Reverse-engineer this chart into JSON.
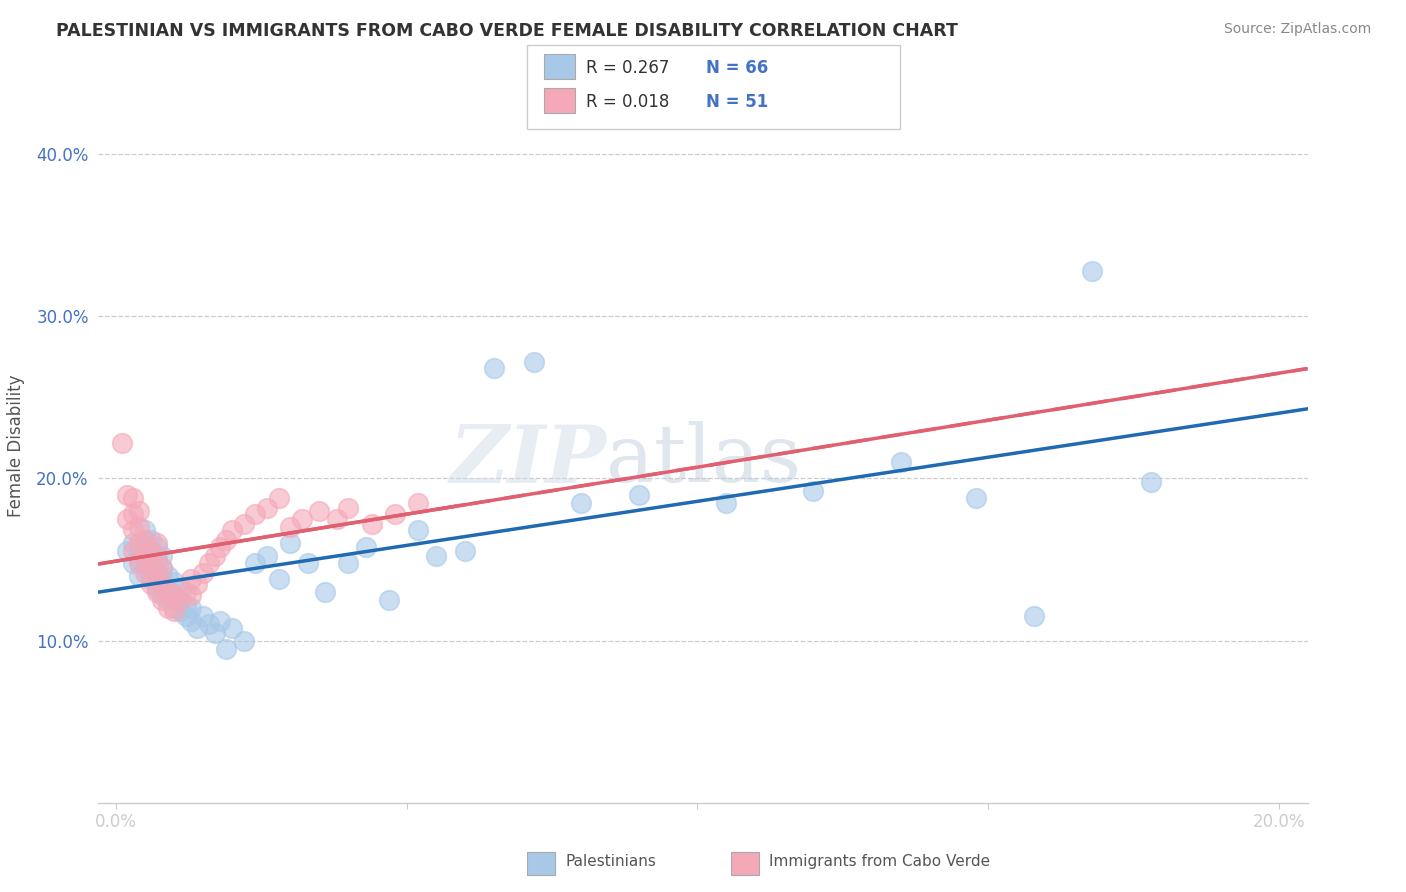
{
  "title": "PALESTINIAN VS IMMIGRANTS FROM CABO VERDE FEMALE DISABILITY CORRELATION CHART",
  "source": "Source: ZipAtlas.com",
  "ylabel": "Female Disability",
  "xlim": [
    -0.003,
    0.205
  ],
  "ylim": [
    0.0,
    0.44
  ],
  "yticks": [
    0.1,
    0.2,
    0.3,
    0.4
  ],
  "xticks": [
    0.0,
    0.05,
    0.1,
    0.15,
    0.2
  ],
  "xtick_labels": [
    "0.0%",
    "",
    "",
    "",
    "20.0%"
  ],
  "ytick_labels": [
    "10.0%",
    "20.0%",
    "30.0%",
    "40.0%"
  ],
  "watermark_zip": "ZIP",
  "watermark_atlas": "atlas",
  "legend_r1": "R = 0.267",
  "legend_n1": "N = 66",
  "legend_r2": "R = 0.018",
  "legend_n2": "N = 51",
  "color_blue": "#a8c8e8",
  "color_pink": "#f4a8b8",
  "color_blue_line": "#1f6ab0",
  "color_pink_line": "#e06070",
  "color_ytick": "#4472c4",
  "title_color": "#333333",
  "source_color": "#888888",
  "palestinians_scatter_x": [
    0.002,
    0.003,
    0.003,
    0.004,
    0.004,
    0.004,
    0.005,
    0.005,
    0.005,
    0.005,
    0.006,
    0.006,
    0.006,
    0.006,
    0.007,
    0.007,
    0.007,
    0.007,
    0.008,
    0.008,
    0.008,
    0.008,
    0.009,
    0.009,
    0.009,
    0.01,
    0.01,
    0.01,
    0.011,
    0.011,
    0.011,
    0.012,
    0.012,
    0.013,
    0.013,
    0.014,
    0.015,
    0.016,
    0.017,
    0.018,
    0.019,
    0.02,
    0.022,
    0.024,
    0.026,
    0.028,
    0.03,
    0.033,
    0.036,
    0.04,
    0.043,
    0.047,
    0.052,
    0.055,
    0.06,
    0.065,
    0.072,
    0.08,
    0.09,
    0.105,
    0.12,
    0.135,
    0.148,
    0.158,
    0.168,
    0.178
  ],
  "palestinians_scatter_y": [
    0.155,
    0.148,
    0.16,
    0.14,
    0.15,
    0.158,
    0.145,
    0.152,
    0.16,
    0.168,
    0.138,
    0.148,
    0.155,
    0.162,
    0.132,
    0.142,
    0.15,
    0.158,
    0.128,
    0.138,
    0.145,
    0.152,
    0.125,
    0.132,
    0.14,
    0.12,
    0.128,
    0.136,
    0.118,
    0.125,
    0.132,
    0.115,
    0.122,
    0.112,
    0.12,
    0.108,
    0.115,
    0.11,
    0.105,
    0.112,
    0.095,
    0.108,
    0.1,
    0.148,
    0.152,
    0.138,
    0.16,
    0.148,
    0.13,
    0.148,
    0.158,
    0.125,
    0.168,
    0.152,
    0.155,
    0.268,
    0.272,
    0.185,
    0.19,
    0.185,
    0.192,
    0.21,
    0.188,
    0.115,
    0.328,
    0.198
  ],
  "caboverde_scatter_x": [
    0.001,
    0.002,
    0.002,
    0.003,
    0.003,
    0.003,
    0.003,
    0.004,
    0.004,
    0.004,
    0.004,
    0.005,
    0.005,
    0.005,
    0.006,
    0.006,
    0.006,
    0.007,
    0.007,
    0.007,
    0.007,
    0.008,
    0.008,
    0.008,
    0.009,
    0.009,
    0.01,
    0.01,
    0.011,
    0.012,
    0.013,
    0.013,
    0.014,
    0.015,
    0.016,
    0.017,
    0.018,
    0.019,
    0.02,
    0.022,
    0.024,
    0.026,
    0.028,
    0.03,
    0.032,
    0.035,
    0.038,
    0.04,
    0.044,
    0.048,
    0.052
  ],
  "caboverde_scatter_y": [
    0.222,
    0.175,
    0.19,
    0.155,
    0.168,
    0.178,
    0.188,
    0.148,
    0.16,
    0.17,
    0.18,
    0.142,
    0.152,
    0.162,
    0.135,
    0.145,
    0.155,
    0.13,
    0.14,
    0.15,
    0.16,
    0.125,
    0.135,
    0.145,
    0.12,
    0.13,
    0.118,
    0.128,
    0.125,
    0.13,
    0.128,
    0.138,
    0.135,
    0.142,
    0.148,
    0.152,
    0.158,
    0.162,
    0.168,
    0.172,
    0.178,
    0.182,
    0.188,
    0.17,
    0.175,
    0.18,
    0.175,
    0.182,
    0.172,
    0.178,
    0.185
  ]
}
